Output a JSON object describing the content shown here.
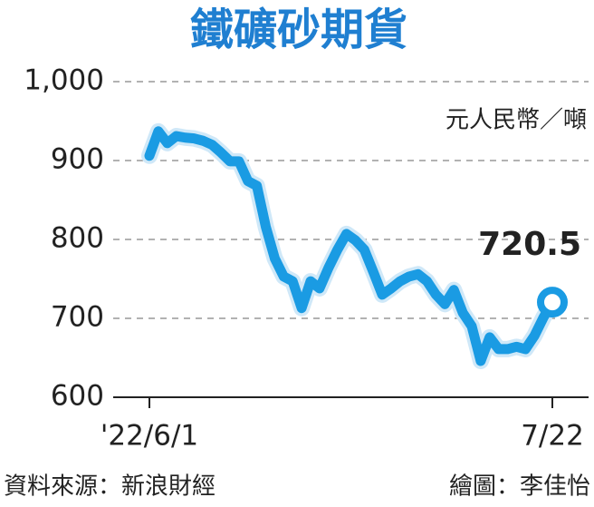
{
  "chart_data": {
    "type": "line",
    "title": "鐵礦砂期貨",
    "unit": "元人民幣／噸",
    "source": "資料來源：新浪財經",
    "credit": "繪圖：李佳怡",
    "categories": [
      "'22/6/1",
      null,
      null,
      null,
      null,
      null,
      null,
      null,
      null,
      null,
      null,
      null,
      null,
      null,
      null,
      null,
      null,
      null,
      null,
      null,
      null,
      null,
      null,
      null,
      null,
      null,
      null,
      null,
      null,
      null,
      null,
      null,
      null,
      null,
      null,
      null,
      null,
      null,
      null,
      null,
      null,
      null,
      null,
      null,
      null,
      "7/22"
    ],
    "values": [
      906,
      937,
      922,
      931,
      929,
      928,
      925,
      920,
      910,
      899,
      899,
      874,
      868,
      816,
      776,
      753,
      747,
      713,
      747,
      738,
      764,
      787,
      807,
      799,
      787,
      759,
      730,
      738,
      747,
      753,
      756,
      747,
      730,
      718,
      736,
      707,
      690,
      646,
      676,
      661,
      661,
      664,
      661,
      678,
      701,
      720.5
    ],
    "color": "#1a9be3",
    "ylim": [
      600,
      1000
    ],
    "yticks": [
      600,
      700,
      800,
      900,
      {
        "value": 1000,
        "label": "1,000"
      }
    ],
    "grid": true
  }
}
